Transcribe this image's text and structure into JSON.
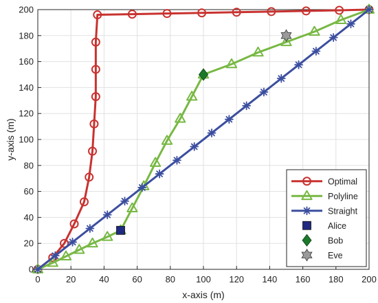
{
  "chart_data": {
    "type": "line",
    "title": "",
    "xlabel": "x-axis (m)",
    "ylabel": "y-axis (m)",
    "xlim": [
      0,
      200
    ],
    "ylim": [
      0,
      200
    ],
    "xticks": [
      0,
      20,
      40,
      60,
      80,
      100,
      120,
      140,
      160,
      180,
      200
    ],
    "yticks": [
      0,
      20,
      40,
      60,
      80,
      100,
      120,
      140,
      160,
      180,
      200
    ],
    "grid": true,
    "legend_position": "bottom-right",
    "series": [
      {
        "name": "Optimal",
        "marker": "circle",
        "color": "#c8322f",
        "points": [
          [
            0,
            0
          ],
          [
            9,
            9
          ],
          [
            16,
            20
          ],
          [
            22,
            35
          ],
          [
            28,
            52
          ],
          [
            31,
            71
          ],
          [
            33,
            91
          ],
          [
            34,
            112
          ],
          [
            35,
            133
          ],
          [
            35,
            154
          ],
          [
            35,
            175
          ],
          [
            36,
            196
          ],
          [
            57,
            196.5
          ],
          [
            78,
            197
          ],
          [
            99,
            197.5
          ],
          [
            120,
            198
          ],
          [
            141,
            198.5
          ],
          [
            162,
            199
          ],
          [
            182,
            199.5
          ],
          [
            200,
            200
          ]
        ]
      },
      {
        "name": "Polyline",
        "marker": "triangle",
        "color": "#77b843",
        "points": [
          [
            0,
            0
          ],
          [
            9,
            5
          ],
          [
            17,
            10
          ],
          [
            25,
            15
          ],
          [
            33,
            20
          ],
          [
            42,
            25
          ],
          [
            50,
            30
          ],
          [
            57,
            47
          ],
          [
            64,
            64
          ],
          [
            71,
            82
          ],
          [
            78,
            99
          ],
          [
            86,
            116
          ],
          [
            93,
            133
          ],
          [
            100,
            150
          ],
          [
            117,
            158
          ],
          [
            133,
            167
          ],
          [
            150,
            175
          ],
          [
            167,
            183
          ],
          [
            183,
            192
          ],
          [
            200,
            200
          ]
        ]
      },
      {
        "name": "Straight",
        "marker": "star",
        "color": "#3b4e9f",
        "points": [
          [
            0,
            0
          ],
          [
            10.5,
            10.5
          ],
          [
            21,
            21
          ],
          [
            31.5,
            31.5
          ],
          [
            42,
            42
          ],
          [
            52.5,
            52.5
          ],
          [
            63,
            63
          ],
          [
            73.5,
            73.5
          ],
          [
            84,
            84
          ],
          [
            94.5,
            94.5
          ],
          [
            105,
            105
          ],
          [
            115.5,
            115.5
          ],
          [
            126,
            126
          ],
          [
            136.5,
            136.5
          ],
          [
            147,
            147
          ],
          [
            157.5,
            157.5
          ],
          [
            168,
            168
          ],
          [
            178.5,
            178.5
          ],
          [
            189,
            189
          ],
          [
            200,
            200
          ]
        ]
      }
    ],
    "markers": [
      {
        "name": "Alice",
        "shape": "square",
        "color": "#1f2a80",
        "x": 50,
        "y": 30
      },
      {
        "name": "Bob",
        "shape": "diamond",
        "color": "#1b7a2a",
        "x": 100,
        "y": 150
      },
      {
        "name": "Eve",
        "shape": "hexagram",
        "color": "#9a9a9a",
        "x": 150,
        "y": 180
      }
    ]
  }
}
